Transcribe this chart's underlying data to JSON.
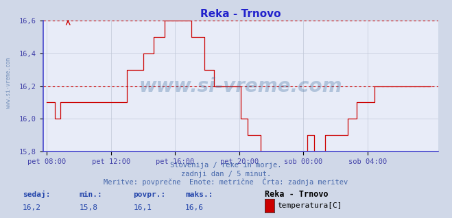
{
  "title": "Reka - Trnovo",
  "title_color": "#2222cc",
  "bg_color": "#d0d8e8",
  "plot_bg_color": "#e8ecf8",
  "grid_color": "#c0c8d8",
  "line_color": "#cc0000",
  "avg_line_color": "#cc0000",
  "avg_value": 16.2,
  "ylim": [
    15.8,
    16.6
  ],
  "yticks": [
    15.8,
    16.0,
    16.2,
    16.4,
    16.6
  ],
  "tick_color": "#4444aa",
  "xtick_labels": [
    "pet 08:00",
    "pet 12:00",
    "pet 16:00",
    "pet 20:00",
    "sob 00:00",
    "sob 04:00"
  ],
  "xtick_positions": [
    0,
    48,
    96,
    144,
    192,
    240
  ],
  "watermark": "www.si-vreme.com",
  "ylabel_text": "www.si-vreme.com",
  "footer_line1": "Slovenija / reke in morje.",
  "footer_line2": "zadnji dan / 5 minut.",
  "footer_line3": "Meritve: povprečne  Enote: metrične  Črta: zadnja meritev",
  "footer_color": "#4466aa",
  "stats_labels": [
    "sedaj:",
    "min.:",
    "povpr.:",
    "maks.:"
  ],
  "stats_values": [
    "16,2",
    "15,8",
    "16,1",
    "16,6"
  ],
  "stats_color": "#2244aa",
  "legend_title": "Reka - Trnovo",
  "legend_label": "temperatura[C]",
  "legend_rect_color": "#cc0000",
  "n_points": 288,
  "left_spine_color": "#4444cc",
  "bottom_spine_color": "#4444cc",
  "top_dashed_color": "#cc0000"
}
